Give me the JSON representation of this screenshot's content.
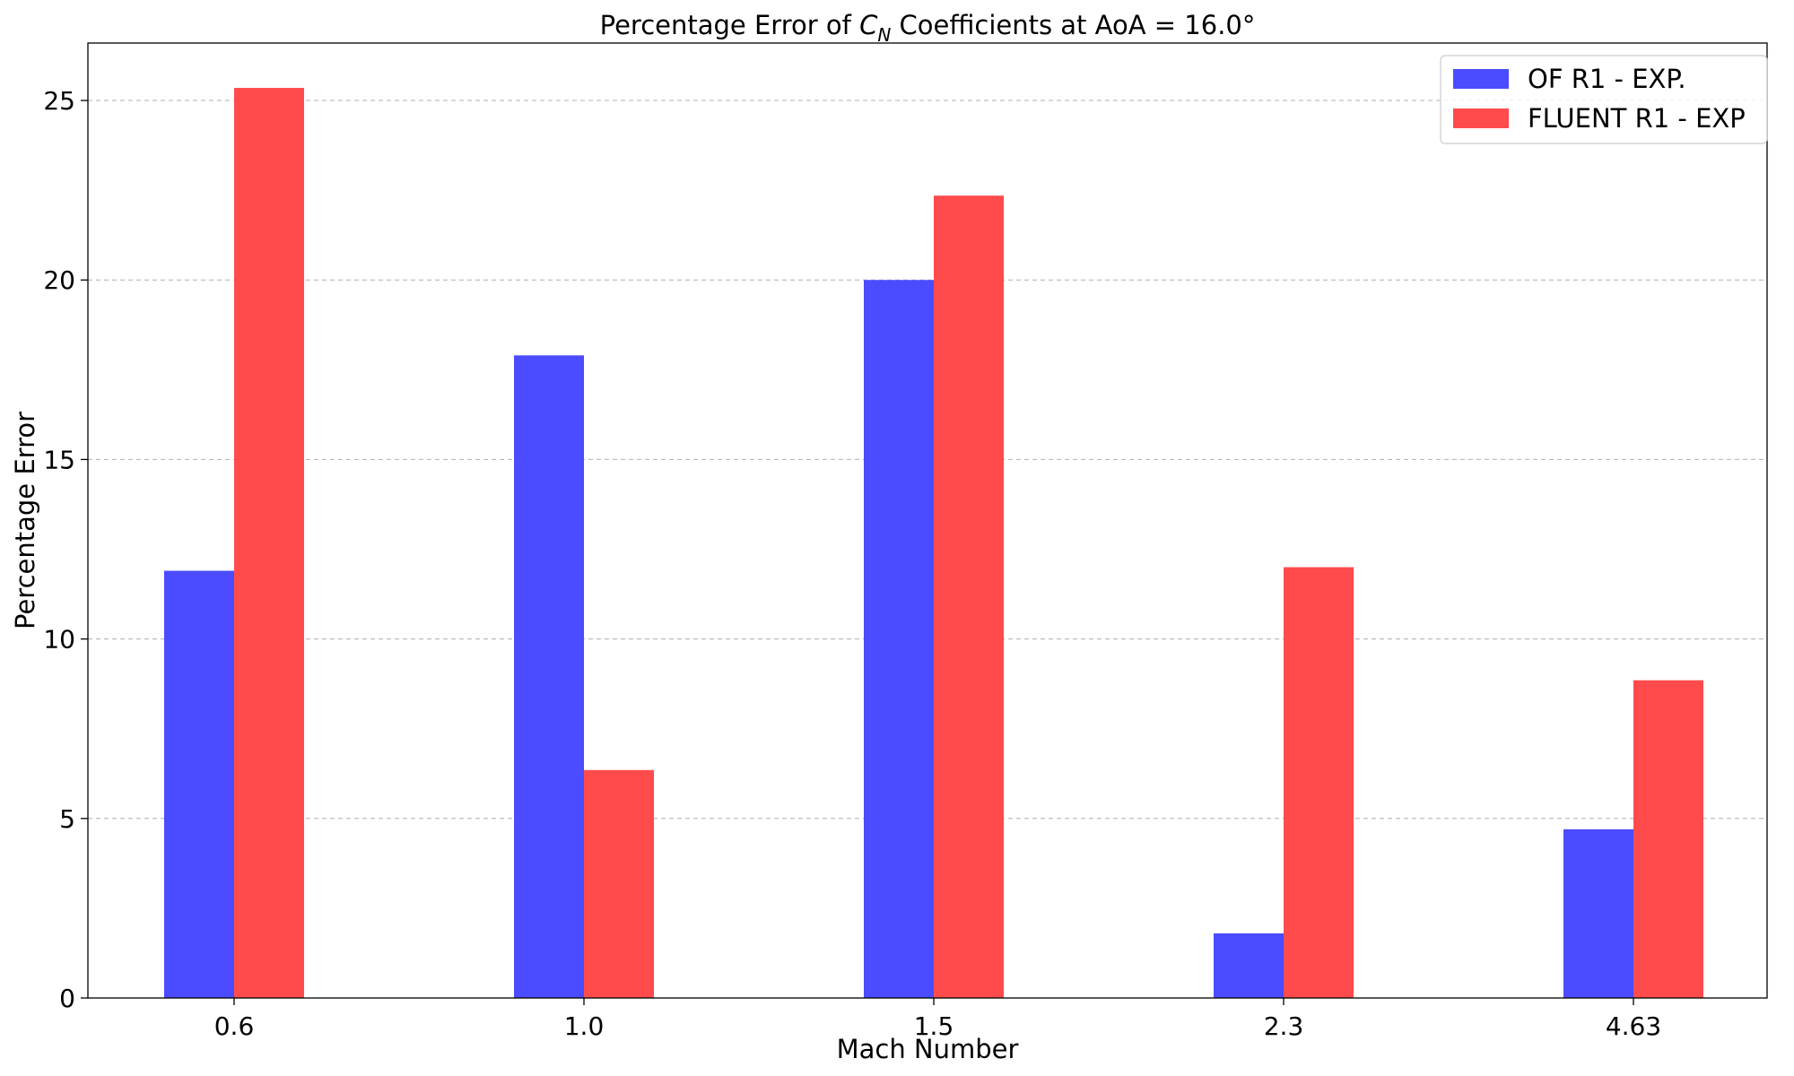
{
  "chart_data": {
    "type": "bar",
    "title_prefix": "Percentage Error of ",
    "title_math_base": "C",
    "title_math_sub": "N",
    "title_suffix": " Coefficients at AoA = 16.0°",
    "xlabel": "Mach Number",
    "ylabel": "Percentage Error",
    "categories": [
      "0.6",
      "1.0",
      "1.5",
      "2.3",
      "4.63"
    ],
    "ylim": [
      0,
      26.6
    ],
    "yticks": [
      0,
      5,
      10,
      15,
      20,
      25
    ],
    "grid": "y-dashed",
    "legend_position": "top-right",
    "series": [
      {
        "name": "OF R1 - EXP.",
        "color": "#4b4bff",
        "values": [
          11.9,
          17.9,
          20.0,
          1.8,
          4.7
        ]
      },
      {
        "name": "FLUENT R1 - EXP",
        "color": "#ff4b4b",
        "values": [
          25.35,
          6.35,
          22.35,
          12.0,
          8.85
        ]
      }
    ]
  }
}
